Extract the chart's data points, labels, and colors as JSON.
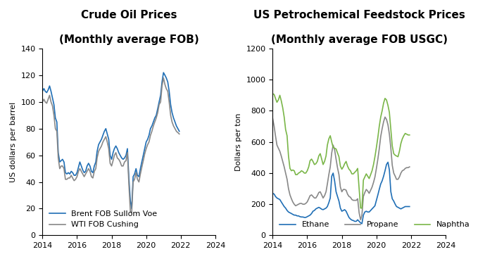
{
  "title_left": "Crude Oil Prices",
  "subtitle_left": "(Monthly average FOB)",
  "title_right": "US Petrochemical Feedstock Prices",
  "subtitle_right": "(Monthly average FOB USGC)",
  "ylabel_left": "US dollars per barrel",
  "ylabel_right": "Dollars per ton",
  "ylim_left": [
    0,
    140
  ],
  "ylim_right": [
    0,
    1200
  ],
  "yticks_left": [
    0,
    20,
    40,
    60,
    80,
    100,
    120,
    140
  ],
  "yticks_right": [
    0,
    200,
    400,
    600,
    800,
    1000,
    1200
  ],
  "legend_left": [
    "Brent FOB Sullom Voe",
    "WTI FOB Cushing"
  ],
  "legend_right": [
    "Ethane",
    "Propane",
    "Naphtha"
  ],
  "color_brent": "#1f6eb5",
  "color_wti": "#888888",
  "color_ethane": "#1f6eb5",
  "color_propane": "#888888",
  "color_naphtha": "#7ab648",
  "title_fontsize": 11,
  "subtitle_fontsize": 11,
  "axis_label_fontsize": 8,
  "tick_fontsize": 8,
  "legend_fontsize": 8,
  "background_color": "#ffffff",
  "brent": [
    108,
    110,
    108,
    107,
    109,
    112,
    108,
    103,
    98,
    88,
    85,
    62,
    55,
    56,
    57,
    55,
    47,
    46,
    47,
    46,
    48,
    47,
    45,
    45,
    47,
    51,
    55,
    52,
    49,
    47,
    48,
    52,
    54,
    52,
    48,
    47,
    52,
    55,
    63,
    68,
    70,
    72,
    75,
    78,
    80,
    76,
    72,
    60,
    57,
    62,
    65,
    67,
    65,
    62,
    60,
    58,
    57,
    58,
    60,
    65,
    43,
    26,
    20,
    44,
    46,
    50,
    45,
    44,
    50,
    55,
    60,
    65,
    70,
    72,
    75,
    80,
    82,
    85,
    88,
    90,
    95,
    100,
    105,
    115,
    122,
    120,
    118,
    115,
    108,
    98,
    92,
    88,
    85,
    82,
    80,
    78
  ],
  "wti": [
    100,
    102,
    100,
    99,
    102,
    105,
    100,
    97,
    90,
    80,
    78,
    58,
    50,
    52,
    52,
    50,
    42,
    42,
    43,
    43,
    45,
    43,
    41,
    42,
    44,
    48,
    50,
    48,
    46,
    44,
    46,
    48,
    50,
    48,
    44,
    43,
    48,
    50,
    58,
    63,
    65,
    67,
    70,
    72,
    74,
    70,
    65,
    54,
    52,
    56,
    60,
    62,
    58,
    57,
    55,
    52,
    52,
    55,
    56,
    62,
    38,
    18,
    17,
    40,
    42,
    47,
    42,
    40,
    46,
    51,
    56,
    61,
    65,
    68,
    70,
    75,
    78,
    82,
    85,
    88,
    92,
    98,
    100,
    112,
    118,
    113,
    110,
    108,
    100,
    90,
    85,
    82,
    80,
    78,
    77,
    76
  ],
  "ethane": [
    270,
    265,
    250,
    240,
    235,
    230,
    215,
    200,
    185,
    175,
    160,
    150,
    145,
    140,
    135,
    130,
    130,
    125,
    125,
    120,
    118,
    118,
    115,
    115,
    120,
    125,
    130,
    140,
    155,
    160,
    170,
    175,
    180,
    175,
    168,
    165,
    170,
    175,
    185,
    210,
    240,
    380,
    400,
    350,
    280,
    250,
    220,
    175,
    155,
    160,
    165,
    155,
    135,
    115,
    105,
    98,
    95,
    90,
    90,
    100,
    90,
    80,
    75,
    130,
    150,
    155,
    150,
    150,
    160,
    170,
    180,
    190,
    225,
    260,
    295,
    330,
    350,
    380,
    415,
    455,
    470,
    420,
    280,
    235,
    220,
    200,
    185,
    180,
    175,
    170,
    175,
    180,
    185,
    185,
    185,
    185
  ],
  "propane": [
    750,
    700,
    640,
    580,
    560,
    540,
    510,
    475,
    440,
    400,
    360,
    300,
    260,
    235,
    215,
    200,
    190,
    195,
    200,
    205,
    205,
    200,
    200,
    205,
    215,
    235,
    255,
    260,
    250,
    240,
    240,
    255,
    275,
    280,
    260,
    240,
    255,
    280,
    330,
    390,
    440,
    530,
    580,
    550,
    490,
    435,
    390,
    310,
    280,
    295,
    295,
    290,
    265,
    250,
    245,
    230,
    225,
    225,
    225,
    235,
    145,
    100,
    130,
    250,
    275,
    295,
    285,
    270,
    290,
    310,
    340,
    375,
    430,
    490,
    555,
    635,
    685,
    730,
    760,
    745,
    710,
    650,
    560,
    450,
    400,
    380,
    360,
    360,
    375,
    400,
    415,
    420,
    430,
    435,
    435,
    440
  ],
  "naphtha": [
    910,
    905,
    880,
    855,
    870,
    900,
    865,
    820,
    760,
    680,
    640,
    510,
    430,
    415,
    420,
    415,
    390,
    390,
    400,
    405,
    415,
    410,
    400,
    400,
    415,
    440,
    480,
    490,
    475,
    455,
    460,
    475,
    510,
    525,
    490,
    455,
    475,
    510,
    580,
    620,
    640,
    600,
    565,
    560,
    555,
    530,
    505,
    445,
    425,
    440,
    460,
    475,
    445,
    425,
    415,
    395,
    395,
    405,
    415,
    430,
    300,
    175,
    175,
    355,
    375,
    395,
    380,
    365,
    390,
    415,
    455,
    505,
    565,
    630,
    700,
    760,
    800,
    850,
    880,
    870,
    835,
    790,
    680,
    575,
    525,
    515,
    510,
    505,
    540,
    590,
    620,
    640,
    655,
    650,
    645,
    645
  ],
  "start_year": 2014,
  "n_months": 96
}
